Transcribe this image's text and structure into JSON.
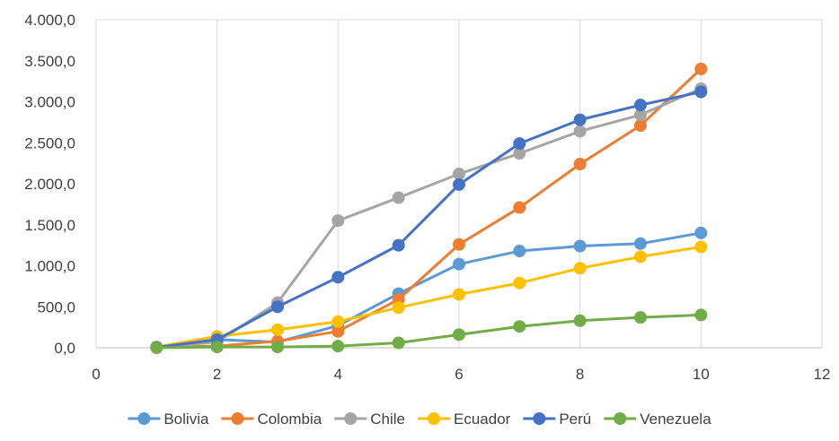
{
  "chart_data": {
    "type": "line",
    "title": "",
    "xlabel": "",
    "ylabel": "",
    "xlim": [
      0,
      12
    ],
    "ylim": [
      0,
      4000
    ],
    "x_ticks": [
      0,
      2,
      4,
      6,
      8,
      10,
      12
    ],
    "y_ticks": [
      0,
      500,
      1000,
      1500,
      2000,
      2500,
      3000,
      3500,
      4000
    ],
    "x_tick_labels": [
      "0",
      "2",
      "4",
      "6",
      "8",
      "10",
      "12"
    ],
    "y_tick_labels": [
      "0,0",
      "500,0",
      "1.000,0",
      "1.500,0",
      "2.000,0",
      "2.500,0",
      "3.000,0",
      "3.500,0",
      "4.000,0"
    ],
    "grid": "vertical",
    "legend_position": "bottom",
    "x": [
      1,
      2,
      3,
      4,
      5,
      6,
      7,
      8,
      9,
      10
    ],
    "series": [
      {
        "name": "Bolivia",
        "color": "#5B9BD5",
        "values": [
          10,
          100,
          70,
          270,
          660,
          1020,
          1180,
          1240,
          1270,
          1400
        ]
      },
      {
        "name": "Colombia",
        "color": "#ED7D31",
        "values": [
          5,
          20,
          80,
          200,
          590,
          1260,
          1710,
          2240,
          2710,
          3400
        ]
      },
      {
        "name": "Chile",
        "color": "#A5A5A5",
        "values": [
          5,
          70,
          550,
          1550,
          1830,
          2120,
          2370,
          2640,
          2840,
          3160
        ]
      },
      {
        "name": "Ecuador",
        "color": "#FFC000",
        "values": [
          10,
          140,
          220,
          320,
          490,
          650,
          790,
          970,
          1110,
          1230
        ]
      },
      {
        "name": "Perú",
        "color": "#4472C4",
        "values": [
          5,
          100,
          500,
          860,
          1250,
          1990,
          2490,
          2780,
          2960,
          3120
        ]
      },
      {
        "name": "Venezuela",
        "color": "#70AD47",
        "values": [
          0,
          10,
          10,
          20,
          60,
          160,
          260,
          330,
          370,
          400
        ]
      }
    ]
  }
}
